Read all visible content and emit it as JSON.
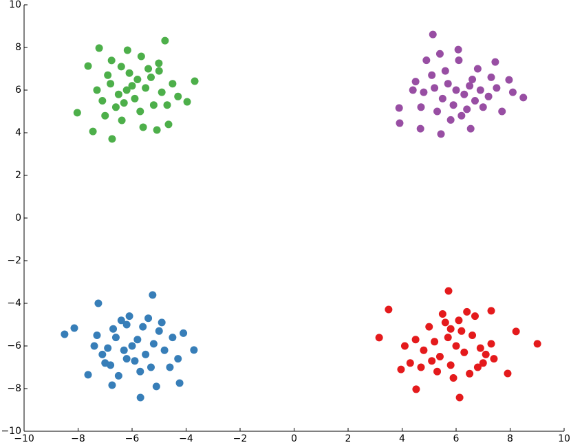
{
  "chart_data": {
    "type": "scatter",
    "xlim": [
      -10,
      10
    ],
    "xticks": [
      {
        "value": -10,
        "label": "−10"
      },
      {
        "value": -8,
        "label": "−8"
      },
      {
        "value": -6,
        "label": "−6"
      },
      {
        "value": -4,
        "label": "−4"
      },
      {
        "value": -2,
        "label": "−2"
      },
      0,
      2,
      4,
      6,
      8,
      10
    ],
    "ylim": [
      -10,
      10
    ],
    "yticks": [
      {
        "value": -10,
        "label": "−10"
      },
      {
        "value": -8,
        "label": "−8"
      },
      {
        "value": -6,
        "label": "−6"
      },
      {
        "value": -4,
        "label": "−4"
      },
      {
        "value": -2,
        "label": "−2"
      },
      0,
      2,
      4,
      6,
      8,
      10
    ],
    "series": [
      {
        "color": "#4daf4a",
        "x": [
          -4.78,
          -7.22,
          -7.63,
          -8.03,
          -7.45,
          -6.74,
          -3.68,
          -3.96,
          -4.65,
          -5.08,
          -5.59,
          -6.38,
          -5.66,
          -6.17,
          -5.01,
          -6.76,
          -6.0,
          -5.8,
          -6.2,
          -5.5,
          -6.5,
          -5.9,
          -6.1,
          -5.3,
          -6.8,
          -4.9,
          -7.1,
          -5.2,
          -6.6,
          -4.5,
          -7.3,
          -5.7,
          -4.3,
          -6.9,
          -5.0,
          -6.3,
          -7.0,
          -4.7,
          -5.4,
          -6.4
        ],
        "values": [
          8.32,
          7.97,
          7.13,
          4.94,
          4.06,
          3.71,
          6.42,
          5.45,
          4.39,
          4.13,
          4.26,
          4.58,
          7.58,
          7.87,
          7.26,
          7.39,
          6.2,
          6.5,
          6.0,
          6.1,
          5.8,
          5.6,
          6.8,
          6.6,
          6.3,
          5.9,
          5.5,
          5.3,
          5.2,
          6.3,
          6.0,
          5.0,
          5.7,
          6.7,
          6.9,
          5.4,
          4.8,
          5.3,
          7.0,
          7.1
        ]
      },
      {
        "color": "#984ea3",
        "x": [
          5.14,
          6.08,
          3.91,
          3.89,
          5.44,
          6.54,
          8.49,
          7.96,
          7.45,
          4.68,
          6.0,
          5.7,
          6.3,
          5.5,
          6.6,
          5.9,
          6.9,
          5.2,
          6.4,
          7.2,
          4.8,
          5.6,
          6.8,
          4.5,
          7.5,
          5.3,
          6.2,
          7.0,
          4.9,
          5.8,
          7.7,
          4.4,
          6.7,
          5.1,
          7.3,
          6.1,
          4.7,
          8.1,
          5.4,
          6.5
        ],
        "values": [
          8.61,
          7.9,
          4.45,
          5.16,
          3.94,
          4.19,
          5.65,
          6.48,
          7.32,
          4.19,
          6.0,
          6.3,
          5.8,
          5.6,
          6.5,
          5.3,
          6.0,
          6.1,
          5.1,
          5.7,
          5.9,
          6.9,
          7.0,
          6.4,
          6.1,
          5.0,
          4.8,
          5.2,
          7.4,
          4.6,
          5.0,
          6.0,
          5.5,
          6.7,
          6.6,
          7.4,
          5.2,
          5.9,
          7.7,
          6.2
        ]
      },
      {
        "color": "#377eb8",
        "x": [
          -5.24,
          -8.5,
          -8.14,
          -7.63,
          -5.69,
          -6.74,
          -4.24,
          -3.71,
          -7.25,
          -6.0,
          -5.8,
          -6.3,
          -5.5,
          -6.6,
          -5.9,
          -6.9,
          -5.2,
          -6.2,
          -7.1,
          -4.8,
          -5.6,
          -6.8,
          -4.5,
          -7.3,
          -5.3,
          -6.4,
          -4.9,
          -7.0,
          -5.7,
          -4.3,
          -6.1,
          -7.4,
          -5.0,
          -6.5,
          -4.6,
          -5.4,
          -6.7,
          -4.1,
          -5.1,
          -6.2
        ],
        "values": [
          -3.61,
          -5.45,
          -5.16,
          -7.35,
          -8.42,
          -7.84,
          -7.74,
          -6.19,
          -4.0,
          -6.0,
          -5.7,
          -6.2,
          -6.4,
          -5.6,
          -6.7,
          -6.1,
          -5.9,
          -5.0,
          -6.4,
          -6.2,
          -5.1,
          -6.9,
          -5.6,
          -5.5,
          -7.0,
          -4.8,
          -4.9,
          -6.8,
          -7.2,
          -6.6,
          -4.6,
          -6.0,
          -5.3,
          -7.4,
          -7.0,
          -4.7,
          -5.2,
          -5.4,
          -7.9,
          -6.6
        ]
      },
      {
        "color": "#e41a1c",
        "x": [
          5.72,
          3.5,
          3.15,
          9.01,
          8.22,
          6.13,
          4.52,
          3.96,
          7.3,
          7.91,
          6.0,
          5.7,
          6.3,
          5.4,
          6.6,
          5.8,
          6.9,
          5.2,
          6.1,
          7.1,
          4.8,
          5.6,
          6.8,
          4.5,
          7.3,
          5.3,
          6.4,
          5.0,
          7.0,
          5.9,
          4.3,
          6.2,
          7.4,
          5.1,
          6.5,
          4.7,
          5.5,
          6.7,
          4.1,
          5.8
        ],
        "values": [
          -3.42,
          -4.29,
          -5.61,
          -5.9,
          -5.32,
          -8.42,
          -8.03,
          -7.1,
          -4.35,
          -7.29,
          -6.0,
          -5.6,
          -6.3,
          -6.5,
          -5.5,
          -6.9,
          -6.1,
          -5.8,
          -4.8,
          -6.4,
          -6.2,
          -4.9,
          -7.0,
          -5.7,
          -5.9,
          -7.2,
          -4.4,
          -5.1,
          -6.8,
          -7.5,
          -6.8,
          -5.3,
          -6.6,
          -6.7,
          -7.3,
          -7.0,
          -4.5,
          -4.6,
          -6.0,
          -5.2
        ]
      }
    ]
  }
}
